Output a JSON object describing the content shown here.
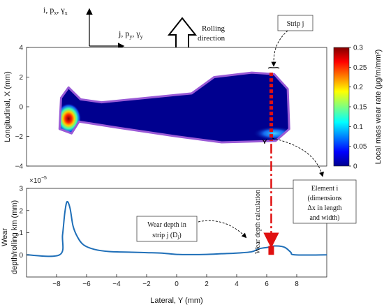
{
  "chart_data": [
    {
      "type": "heatmap",
      "title": "",
      "xlabel": "",
      "ylabel": "Longitudinal, X (mm)",
      "xlim": [
        -10,
        10
      ],
      "ylim": [
        -4,
        4
      ],
      "yticks": [
        "4",
        "2",
        "0",
        "−2",
        "−4"
      ],
      "colorbar": {
        "label": "Local mass wear rate (μg/m/mm²)",
        "range": [
          0,
          0.3
        ],
        "ticks": [
          "0.3",
          "0.25",
          "0.2",
          "0.15",
          "0.1",
          "0.05",
          "0"
        ]
      },
      "contact_outline": [
        [
          -7.7,
          0.6
        ],
        [
          -7.2,
          1.3
        ],
        [
          -6.4,
          0.5
        ],
        [
          -5,
          0.3
        ],
        [
          -2,
          0.6
        ],
        [
          1,
          0.9
        ],
        [
          2.5,
          2.0
        ],
        [
          5,
          2.3
        ],
        [
          6.5,
          2.2
        ],
        [
          7.4,
          1.2
        ],
        [
          7.5,
          -1.5
        ],
        [
          6.6,
          -2.3
        ],
        [
          3,
          -2.4
        ],
        [
          0,
          -2.0
        ],
        [
          -4,
          -1.4
        ],
        [
          -6.5,
          -1.0
        ],
        [
          -7,
          -1.8
        ],
        [
          -7.8,
          -1.5
        ]
      ],
      "hotspots": [
        {
          "y": -7.2,
          "x": -0.8,
          "rate": 0.3
        },
        {
          "y": 6.5,
          "x": -1.8,
          "rate": 0.12
        }
      ]
    },
    {
      "type": "line",
      "title": "",
      "xlabel": "Lateral, Y (mm)",
      "ylabel": "Wear depth/rolling km (mm)",
      "ylabel_line1": "Wear",
      "ylabel_line2": "depth/rolling km (mm)",
      "xlim": [
        -10,
        10
      ],
      "ylim": [
        -1e-05,
        3e-05
      ],
      "y_exponent": "×10",
      "y_exponent_power": "−5",
      "xticks": [
        "−8",
        "−6",
        "−4",
        "−2",
        "0",
        "2",
        "4",
        "6",
        "8"
      ],
      "yticks": [
        "3",
        "2",
        "1",
        "0"
      ],
      "x": [
        -10,
        -7.8,
        -7.6,
        -7.45,
        -7.3,
        -7.1,
        -6.9,
        -6.6,
        -6.2,
        -5.5,
        -4.5,
        -3,
        -2,
        -1,
        0,
        1,
        2,
        3,
        4,
        5,
        5.5,
        6.2,
        6.5,
        7,
        7.3,
        7.6,
        7.9,
        10
      ],
      "series": [
        {
          "values": [
            0,
            0,
            9e-06,
            1.9e-05,
            2.4e-05,
            2.1e-05,
            1.3e-05,
            8e-06,
            4.5e-06,
            2.5e-06,
            1.5e-06,
            1.2e-06,
            1e-06,
            8e-07,
            2e-07,
            1e-07,
            2e-07,
            5e-07,
            8e-07,
            1.4e-06,
            2.8e-06,
            3.5e-06,
            4e-06,
            3.8e-06,
            3e-06,
            1.2e-06,
            0,
            0
          ],
          "color": "#1f6fb8"
        }
      ]
    }
  ],
  "axes_legend": {
    "vertical_axis_text": "i, p",
    "vertical_axis_sub1": "x",
    "vertical_axis_sep": ", γ",
    "vertical_axis_sub2": "x",
    "horizontal_axis_text": "j, p",
    "horizontal_axis_sub1": "y",
    "horizontal_axis_sep": ", γ",
    "horizontal_axis_sub2": "y"
  },
  "rolling_direction": {
    "line1": "Rolling",
    "line2": "direction"
  },
  "callouts": {
    "strip": "Strip j",
    "element_lines": [
      "Element i",
      "(dimensions",
      "Δx in length",
      "and width)"
    ],
    "wear_depth_lines": [
      "Wear depth in",
      "strip j (D"
    ],
    "wear_depth_sub": "j",
    "wear_depth_close": ")",
    "wear_depth_calc": "Wear depth calculation"
  },
  "colors": {
    "strip_marker": "#e01010",
    "line": "#1f6fb8",
    "outline": "#9a5ad6",
    "background_min": "#00008f"
  }
}
